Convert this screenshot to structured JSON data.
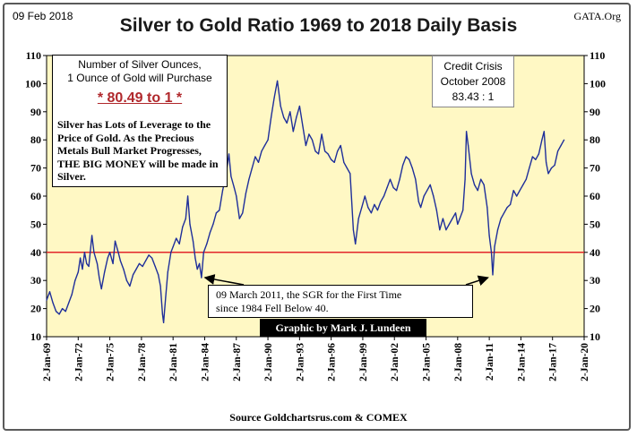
{
  "header": {
    "date": "09 Feb 2018",
    "source_tag": "GATA.Org"
  },
  "chart_data": {
    "type": "line",
    "title": "Silver to Gold Ratio 1969 to 2018 Daily Basis",
    "xlabel": "",
    "ylabel": "",
    "ylim": [
      10,
      110
    ],
    "yticks": [
      10,
      20,
      30,
      40,
      50,
      60,
      70,
      80,
      90,
      100,
      110
    ],
    "grid": false,
    "x_tick_labels": [
      "2-Jan-69",
      "2-Jan-72",
      "2-Jan-75",
      "2-Jan-78",
      "2-Jan-81",
      "2-Jan-84",
      "2-Jan-87",
      "2-Jan-90",
      "2-Jan-93",
      "2-Jan-96",
      "2-Jan-99",
      "2-Jan-02",
      "2-Jan-05",
      "2-Jan-08",
      "2-Jan-11",
      "2-Jan-14",
      "2-Jan-17",
      "2-Jan-20"
    ],
    "x_tick_years": [
      1969,
      1972,
      1975,
      1978,
      1981,
      1984,
      1987,
      1990,
      1993,
      1996,
      1999,
      2002,
      2005,
      2008,
      2011,
      2014,
      2017,
      2020
    ],
    "xlim_years": [
      1969,
      2020
    ],
    "reference_line": {
      "y": 40,
      "color": "#e2262a"
    },
    "line_color": "#1f2f9a",
    "plot_background": "#fff8c4",
    "series": [
      {
        "points": [
          [
            1969.0,
            23
          ],
          [
            1969.3,
            26
          ],
          [
            1969.6,
            22
          ],
          [
            1969.9,
            19
          ],
          [
            1970.2,
            18
          ],
          [
            1970.5,
            20
          ],
          [
            1970.8,
            19
          ],
          [
            1971.1,
            22
          ],
          [
            1971.4,
            25
          ],
          [
            1971.7,
            30
          ],
          [
            1972.0,
            33
          ],
          [
            1972.2,
            38
          ],
          [
            1972.4,
            34
          ],
          [
            1972.6,
            40
          ],
          [
            1972.8,
            36
          ],
          [
            1973.0,
            35
          ],
          [
            1973.3,
            46
          ],
          [
            1973.5,
            40
          ],
          [
            1973.8,
            36
          ],
          [
            1974.0,
            31
          ],
          [
            1974.2,
            27
          ],
          [
            1974.5,
            33
          ],
          [
            1974.8,
            38
          ],
          [
            1975.0,
            40
          ],
          [
            1975.3,
            36
          ],
          [
            1975.5,
            44
          ],
          [
            1975.8,
            40
          ],
          [
            1976.0,
            37
          ],
          [
            1976.3,
            34
          ],
          [
            1976.6,
            30
          ],
          [
            1976.9,
            28
          ],
          [
            1977.2,
            32
          ],
          [
            1977.5,
            34
          ],
          [
            1977.8,
            36
          ],
          [
            1978.1,
            35
          ],
          [
            1978.4,
            37
          ],
          [
            1978.7,
            39
          ],
          [
            1979.0,
            38
          ],
          [
            1979.3,
            35
          ],
          [
            1979.6,
            32
          ],
          [
            1979.8,
            28
          ],
          [
            1980.0,
            18
          ],
          [
            1980.1,
            15
          ],
          [
            1980.3,
            24
          ],
          [
            1980.5,
            33
          ],
          [
            1980.8,
            40
          ],
          [
            1981.0,
            42
          ],
          [
            1981.3,
            45
          ],
          [
            1981.6,
            43
          ],
          [
            1981.9,
            49
          ],
          [
            1982.2,
            52
          ],
          [
            1982.4,
            60
          ],
          [
            1982.6,
            50
          ],
          [
            1982.9,
            44
          ],
          [
            1983.1,
            38
          ],
          [
            1983.3,
            34
          ],
          [
            1983.5,
            36
          ],
          [
            1983.7,
            31
          ],
          [
            1983.9,
            40
          ],
          [
            1984.2,
            43
          ],
          [
            1984.5,
            47
          ],
          [
            1984.8,
            50
          ],
          [
            1985.1,
            54
          ],
          [
            1985.4,
            55
          ],
          [
            1985.7,
            62
          ],
          [
            1986.0,
            67
          ],
          [
            1986.3,
            75
          ],
          [
            1986.5,
            67
          ],
          [
            1986.8,
            63
          ],
          [
            1987.0,
            60
          ],
          [
            1987.3,
            52
          ],
          [
            1987.6,
            54
          ],
          [
            1987.9,
            61
          ],
          [
            1988.2,
            66
          ],
          [
            1988.5,
            70
          ],
          [
            1988.8,
            74
          ],
          [
            1989.1,
            72
          ],
          [
            1989.4,
            76
          ],
          [
            1989.7,
            78
          ],
          [
            1990.0,
            80
          ],
          [
            1990.3,
            88
          ],
          [
            1990.6,
            95
          ],
          [
            1990.9,
            101
          ],
          [
            1991.2,
            92
          ],
          [
            1991.5,
            88
          ],
          [
            1991.8,
            86
          ],
          [
            1992.1,
            90
          ],
          [
            1992.4,
            83
          ],
          [
            1992.7,
            88
          ],
          [
            1993.0,
            92
          ],
          [
            1993.3,
            85
          ],
          [
            1993.6,
            78
          ],
          [
            1993.9,
            82
          ],
          [
            1994.2,
            80
          ],
          [
            1994.5,
            76
          ],
          [
            1994.8,
            75
          ],
          [
            1995.1,
            82
          ],
          [
            1995.4,
            76
          ],
          [
            1995.7,
            75
          ],
          [
            1996.0,
            73
          ],
          [
            1996.3,
            72
          ],
          [
            1996.6,
            76
          ],
          [
            1996.9,
            78
          ],
          [
            1997.2,
            72
          ],
          [
            1997.5,
            70
          ],
          [
            1997.8,
            68
          ],
          [
            1998.1,
            48
          ],
          [
            1998.3,
            43
          ],
          [
            1998.6,
            52
          ],
          [
            1998.9,
            56
          ],
          [
            1999.2,
            60
          ],
          [
            1999.5,
            56
          ],
          [
            1999.8,
            54
          ],
          [
            2000.1,
            57
          ],
          [
            2000.4,
            55
          ],
          [
            2000.7,
            58
          ],
          [
            2001.0,
            60
          ],
          [
            2001.3,
            63
          ],
          [
            2001.6,
            66
          ],
          [
            2001.9,
            63
          ],
          [
            2002.2,
            62
          ],
          [
            2002.5,
            66
          ],
          [
            2002.8,
            71
          ],
          [
            2003.1,
            74
          ],
          [
            2003.4,
            73
          ],
          [
            2003.7,
            70
          ],
          [
            2004.0,
            66
          ],
          [
            2004.3,
            58
          ],
          [
            2004.5,
            56
          ],
          [
            2004.8,
            60
          ],
          [
            2005.1,
            62
          ],
          [
            2005.4,
            64
          ],
          [
            2005.7,
            60
          ],
          [
            2006.0,
            55
          ],
          [
            2006.3,
            48
          ],
          [
            2006.6,
            52
          ],
          [
            2006.9,
            48
          ],
          [
            2007.2,
            50
          ],
          [
            2007.5,
            52
          ],
          [
            2007.8,
            54
          ],
          [
            2008.0,
            50
          ],
          [
            2008.2,
            52
          ],
          [
            2008.5,
            55
          ],
          [
            2008.7,
            66
          ],
          [
            2008.83,
            83
          ],
          [
            2009.0,
            78
          ],
          [
            2009.3,
            68
          ],
          [
            2009.6,
            64
          ],
          [
            2009.9,
            62
          ],
          [
            2010.2,
            66
          ],
          [
            2010.5,
            64
          ],
          [
            2010.8,
            56
          ],
          [
            2011.0,
            46
          ],
          [
            2011.2,
            40
          ],
          [
            2011.33,
            32
          ],
          [
            2011.5,
            42
          ],
          [
            2011.8,
            48
          ],
          [
            2012.1,
            52
          ],
          [
            2012.4,
            54
          ],
          [
            2012.7,
            56
          ],
          [
            2013.0,
            57
          ],
          [
            2013.3,
            62
          ],
          [
            2013.6,
            60
          ],
          [
            2013.9,
            62
          ],
          [
            2014.2,
            64
          ],
          [
            2014.5,
            66
          ],
          [
            2014.8,
            70
          ],
          [
            2015.1,
            74
          ],
          [
            2015.4,
            73
          ],
          [
            2015.7,
            75
          ],
          [
            2016.0,
            80
          ],
          [
            2016.2,
            83
          ],
          [
            2016.4,
            72
          ],
          [
            2016.6,
            68
          ],
          [
            2016.9,
            70
          ],
          [
            2017.2,
            71
          ],
          [
            2017.5,
            76
          ],
          [
            2017.8,
            78
          ],
          [
            2018.1,
            80
          ]
        ]
      }
    ],
    "annotations": {
      "leverage_heading": "Number of Silver Ounces,\n1 Ounce of Gold will Purchase",
      "ratio_value": "* 80.49 to 1 *",
      "leverage_note": "Silver has Lots of Leverage to the Price of Gold.  As the Precious Metals Bull Market Progresses,  THE BIG MONEY will be made in Silver.",
      "crisis_label": "Credit Crisis\nOctober 2008\n83.43 : 1",
      "sgr_note": "09 March 2011, the SGR for the First Time\nsince 1984 Fell Below  40.",
      "credit": "Graphic by Mark J. Lundeen",
      "source": "Source Goldchartsrus.com & COMEX",
      "arrow_targets": [
        {
          "x": 1983.7,
          "y": 31,
          "from": "sgr-box-left"
        },
        {
          "x": 2011.2,
          "y": 31,
          "from": "sgr-box-right"
        }
      ]
    }
  }
}
